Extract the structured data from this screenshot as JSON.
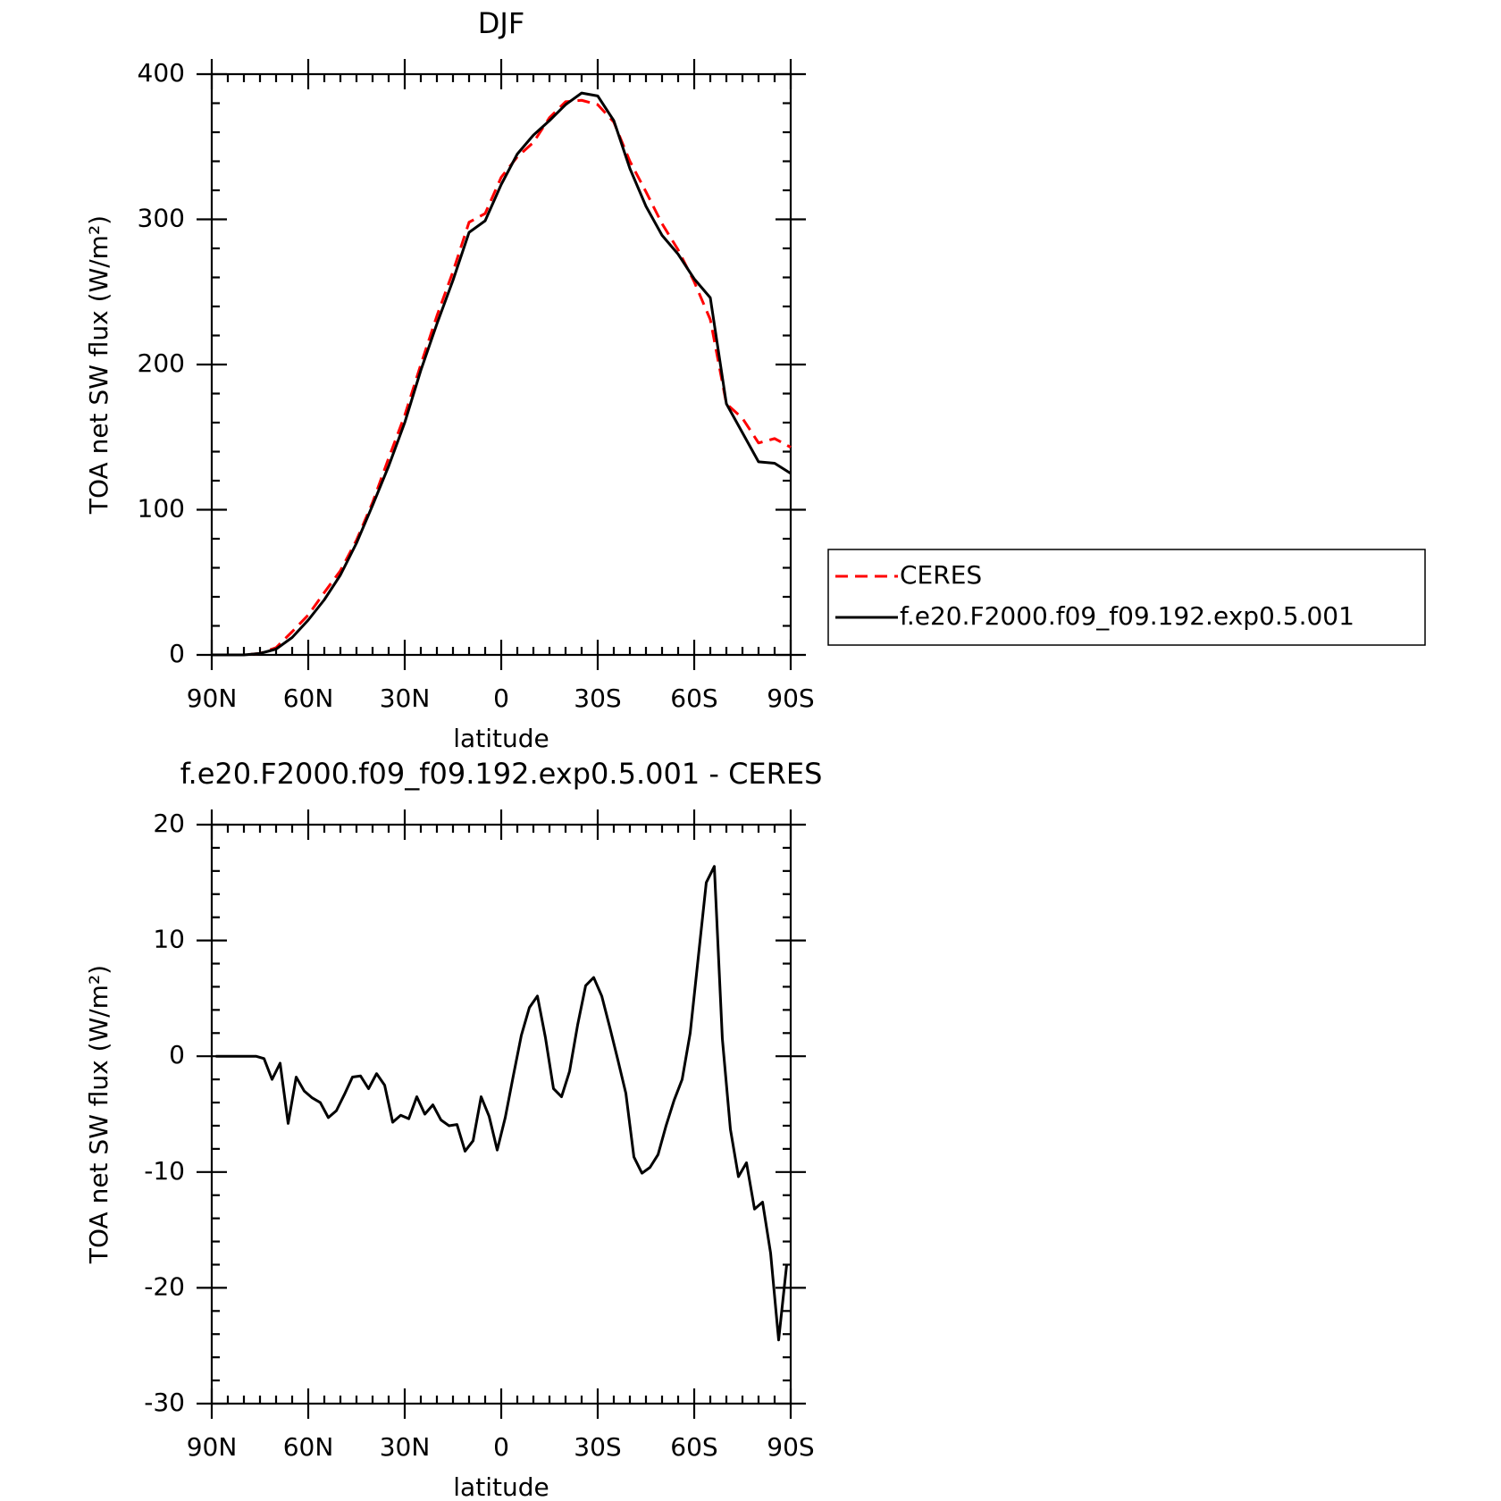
{
  "chart_data": [
    {
      "type": "line",
      "title": "DJF",
      "xlabel": "latitude",
      "ylabel": "TOA net SW flux (W/m²)",
      "x": [
        90,
        85,
        80,
        75,
        70,
        65,
        60,
        55,
        50,
        45,
        40,
        35,
        30,
        25,
        20,
        15,
        10,
        5,
        0,
        -5,
        -10,
        -15,
        -20,
        -25,
        -30,
        -35,
        -40,
        -45,
        -50,
        -55,
        -60,
        -65,
        -70,
        -75,
        -80,
        -85,
        -90
      ],
      "series": [
        {
          "name": "CERES",
          "color": "#ff0000",
          "linestyle": "dashed",
          "values": [
            0,
            0,
            0,
            1,
            5,
            16,
            27.5,
            43,
            58,
            79,
            105,
            135.5,
            165,
            200,
            233.5,
            264,
            298,
            304,
            329,
            343,
            353,
            370,
            381,
            382,
            379,
            367,
            340,
            319,
            297,
            279,
            257,
            231,
            173,
            163,
            146,
            149,
            143
          ]
        },
        {
          "name": "f.e20.F2000.f09_f09.192.exp0.5.001",
          "color": "#000000",
          "linestyle": "solid",
          "values": [
            0,
            0,
            0,
            1,
            4,
            12,
            24,
            38,
            55,
            77,
            103,
            130,
            160,
            196,
            228,
            258,
            291,
            299,
            324,
            345,
            358,
            368,
            379,
            387,
            385,
            368,
            335,
            309,
            289,
            276,
            259,
            246,
            173,
            153,
            133,
            132,
            125
          ]
        }
      ],
      "xlim": [
        90,
        -90
      ],
      "xticks": [
        {
          "value": 90,
          "label": "90N"
        },
        {
          "value": 60,
          "label": "60N"
        },
        {
          "value": 30,
          "label": "30N"
        },
        0,
        {
          "value": -30,
          "label": "30S"
        },
        {
          "value": -60,
          "label": "60S"
        },
        {
          "value": -90,
          "label": "90S"
        }
      ],
      "ylim": [
        0,
        400
      ],
      "yticks": [
        0,
        100,
        200,
        300,
        400
      ],
      "legend": "right"
    },
    {
      "type": "line",
      "title": "f.e20.F2000.f09_f09.192.exp0.5.001 - CERES",
      "xlabel": "latitude",
      "ylabel": "TOA net SW flux (W/m²)",
      "x": [
        88.75,
        86.25,
        83.75,
        81.25,
        78.75,
        76.25,
        73.75,
        71.25,
        68.75,
        66.25,
        63.75,
        61.25,
        58.75,
        56.25,
        53.75,
        51.25,
        48.75,
        46.25,
        43.75,
        41.25,
        38.75,
        36.25,
        33.75,
        31.25,
        28.75,
        26.25,
        23.75,
        21.25,
        18.75,
        16.25,
        13.75,
        11.25,
        8.75,
        6.25,
        3.75,
        1.25,
        -1.25,
        -3.75,
        -6.25,
        -8.75,
        -11.25,
        -13.75,
        -16.25,
        -18.75,
        -21.25,
        -23.75,
        -26.25,
        -28.75,
        -31.25,
        -33.75,
        -36.25,
        -38.75,
        -41.25,
        -43.75,
        -46.25,
        -48.75,
        -51.25,
        -53.75,
        -56.25,
        -58.75,
        -61.25,
        -63.75,
        -66.25,
        -68.75,
        -71.25,
        -73.75,
        -76.25,
        -78.75,
        -81.25,
        -83.75,
        -86.25,
        -88.75
      ],
      "values": [
        0,
        0,
        0,
        0,
        0,
        0,
        -0.2,
        -2,
        -0.6,
        -5.8,
        -1.8,
        -3,
        -3.6,
        -4,
        -5.3,
        -4.7,
        -3.3,
        -1.8,
        -1.7,
        -2.8,
        -1.5,
        -2.5,
        -5.7,
        -5.1,
        -5.4,
        -3.5,
        -5,
        -4.2,
        -5.5,
        -6,
        -5.9,
        -8.2,
        -7.3,
        -3.5,
        -5.2,
        -8.1,
        -5.3,
        -1.7,
        1.8,
        4.2,
        5.2,
        1.6,
        -2.8,
        -3.5,
        -1.3,
        2.7,
        6.1,
        6.8,
        5.2,
        2.5,
        -0.3,
        -3.2,
        -8.7,
        -10.1,
        -9.6,
        -8.5,
        -6,
        -3.8,
        -2,
        2,
        8.5,
        15,
        16.4,
        1.5,
        -6.3,
        -10.4,
        -9.2,
        -13.2,
        -12.6,
        -17,
        -24.5,
        -18
      ],
      "color": "#000000",
      "xlim": [
        90,
        -90
      ],
      "xticks": [
        {
          "value": 90,
          "label": "90N"
        },
        {
          "value": 60,
          "label": "60N"
        },
        {
          "value": 30,
          "label": "30N"
        },
        0,
        {
          "value": -30,
          "label": "30S"
        },
        {
          "value": -60,
          "label": "60S"
        },
        {
          "value": -90,
          "label": "90S"
        }
      ],
      "ylim": [
        -30,
        20
      ],
      "yticks": [
        -30,
        -20,
        -10,
        0,
        10,
        20
      ]
    }
  ]
}
